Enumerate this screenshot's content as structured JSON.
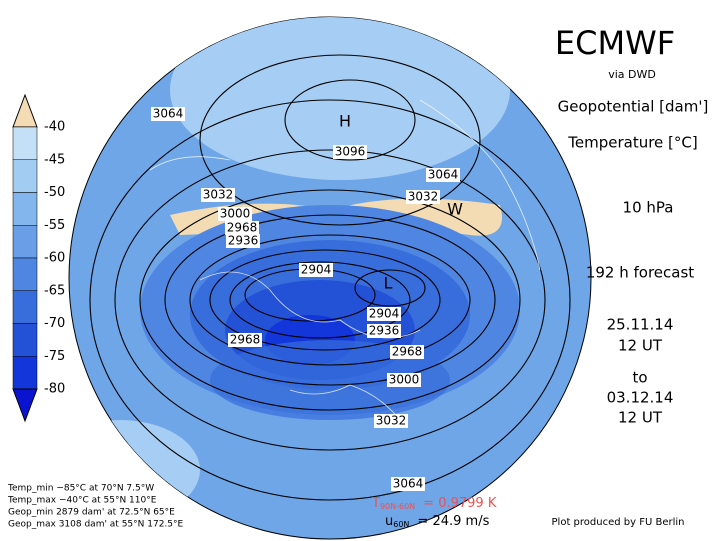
{
  "header": {
    "title": "ECMWF",
    "source": "via DWD",
    "field1": "Geopotential [dam']",
    "field2": "Temperature [°C]",
    "level": "10 hPa",
    "forecast": "192 h forecast",
    "start_date": "25.11.14",
    "start_time": "12 UT",
    "to": "to",
    "valid_date": "03.12.14",
    "valid_time": "12 UT"
  },
  "colorbar": {
    "labels": [
      "-40",
      "-45",
      "-50",
      "-55",
      "-60",
      "-65",
      "-70",
      "-75",
      "-80"
    ],
    "colors": [
      "#f3dcb4",
      "#c4e0f6",
      "#a2ccf1",
      "#82b6ec",
      "#6a9fe7",
      "#4f86e2",
      "#386ddc",
      "#2452d7",
      "#1236da",
      "#0a14d0"
    ]
  },
  "map": {
    "contour_labels": [
      "3064",
      "H",
      "3096",
      "3064",
      "3032",
      "3032",
      "W",
      "3000",
      "2968",
      "2936",
      "2904",
      "L",
      "2904",
      "2936",
      "2968",
      "2968",
      "3000",
      "3032",
      "3064"
    ]
  },
  "stats": [
    "Temp_min −85°C at 70°N 7.5°W",
    "Temp_max −40°C at 55°N 110°E",
    "Geop_min 2879 dam' at 72.5°N 65°E",
    "Geop_max 3108 dam' at 55°N 172.5°E"
  ],
  "footer": {
    "t_symbol": "T",
    "t_sub": "90N-60N",
    "t_value": "= 0.9799 K",
    "u_symbol": "u",
    "u_sub": "60N",
    "u_value": "= 24.9 m/s",
    "credit": "Plot produced by FU Berlin"
  }
}
